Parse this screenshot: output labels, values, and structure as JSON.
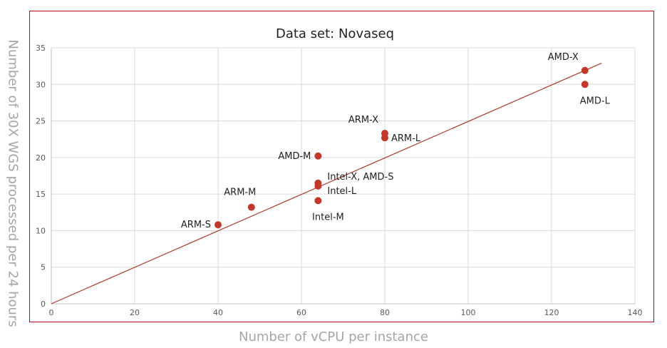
{
  "chart_data": {
    "type": "scatter",
    "title": "Data set: Novaseq",
    "xlabel": "Number of vCPU per instance",
    "ylabel": "Number of 30X WGS processed per 24 hours",
    "xlim": [
      0,
      140
    ],
    "ylim": [
      0,
      35
    ],
    "xticks": [
      0,
      20,
      40,
      60,
      80,
      100,
      120,
      140
    ],
    "yticks": [
      0,
      5,
      10,
      15,
      20,
      25,
      30,
      35
    ],
    "grid": true,
    "legend": "none",
    "point_color": "#c0392b",
    "line_color": "#b03a2e",
    "points": [
      {
        "label": "ARM-S",
        "x": 40,
        "y": 10.8,
        "anchor": "left"
      },
      {
        "label": "ARM-M",
        "x": 48,
        "y": 13.2,
        "anchor": "above"
      },
      {
        "label": "Intel-M",
        "x": 64,
        "y": 14.1,
        "anchor": "below"
      },
      {
        "label": "Intel-L",
        "x": 64,
        "y": 16.1,
        "anchor": "right-low"
      },
      {
        "label": "Intel-X, AMD-S",
        "x": 64,
        "y": 16.5,
        "anchor": "right-high"
      },
      {
        "label": "AMD-M",
        "x": 64,
        "y": 20.2,
        "anchor": "left"
      },
      {
        "label": "ARM-X",
        "x": 80,
        "y": 23.3,
        "anchor": "above-left"
      },
      {
        "label": "ARM-L",
        "x": 80,
        "y": 22.7,
        "anchor": "right"
      },
      {
        "label": "AMD-X",
        "x": 128,
        "y": 31.9,
        "anchor": "above-left"
      },
      {
        "label": "AMD-L",
        "x": 128,
        "y": 30.0,
        "anchor": "below"
      }
    ],
    "trendline": {
      "x": [
        0,
        132
      ],
      "y": [
        0,
        32.9
      ]
    }
  }
}
